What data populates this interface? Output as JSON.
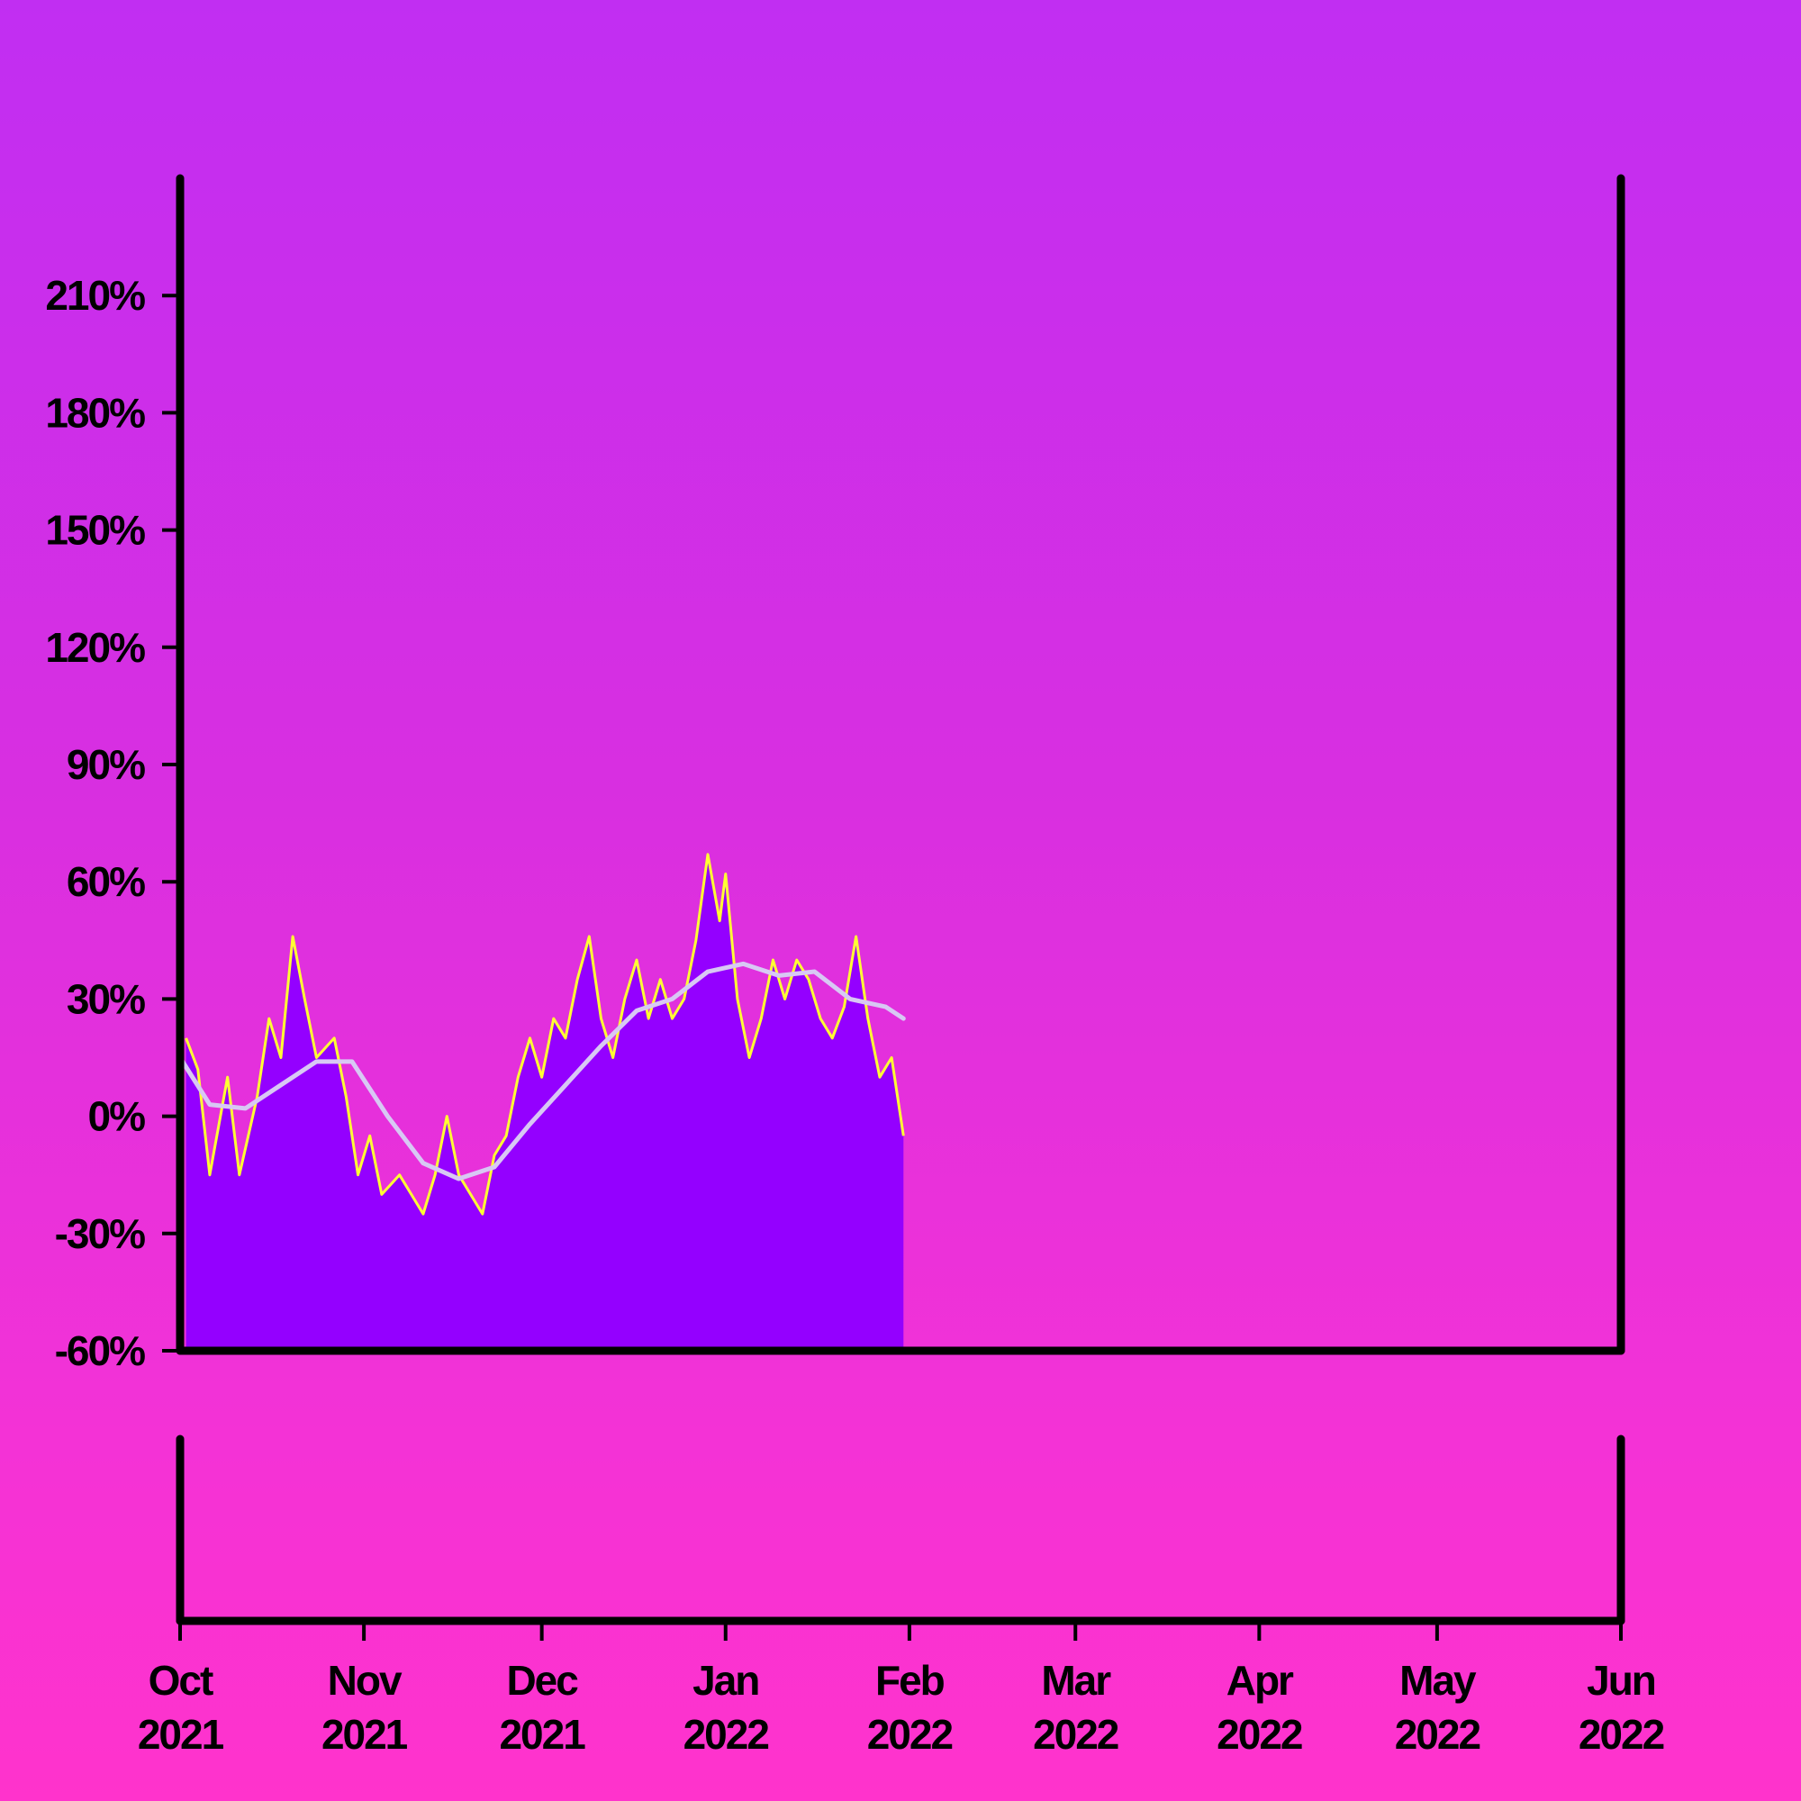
{
  "chart_data": {
    "type": "area",
    "x_range": [
      "2021-10-01",
      "2022-06-01"
    ],
    "ylim": [
      -60,
      240
    ],
    "y_ticks": [
      {
        "value": 210,
        "label": "210%"
      },
      {
        "value": 180,
        "label": "180%"
      },
      {
        "value": 150,
        "label": "150%"
      },
      {
        "value": 120,
        "label": "120%"
      },
      {
        "value": 90,
        "label": "90%"
      },
      {
        "value": 60,
        "label": "60%"
      },
      {
        "value": 30,
        "label": "30%"
      },
      {
        "value": 0,
        "label": "0%"
      },
      {
        "value": -30,
        "label": "-30%"
      },
      {
        "value": -60,
        "label": "-60%"
      }
    ],
    "x_ticks": [
      {
        "date": "2021-10-01",
        "month": "Oct",
        "year": "2021"
      },
      {
        "date": "2021-11-01",
        "month": "Nov",
        "year": "2021"
      },
      {
        "date": "2021-12-01",
        "month": "Dec",
        "year": "2021"
      },
      {
        "date": "2022-01-01",
        "month": "Jan",
        "year": "2022"
      },
      {
        "date": "2022-02-01",
        "month": "Feb",
        "year": "2022"
      },
      {
        "date": "2022-03-01",
        "month": "Mar",
        "year": "2022"
      },
      {
        "date": "2022-04-01",
        "month": "Apr",
        "year": "2022"
      },
      {
        "date": "2022-05-01",
        "month": "May",
        "year": "2022"
      },
      {
        "date": "2022-06-01",
        "month": "Jun",
        "year": "2022"
      }
    ],
    "series": [
      {
        "role": "value",
        "points": [
          [
            "2021-10-02",
            20
          ],
          [
            "2021-10-04",
            12
          ],
          [
            "2021-10-06",
            -15
          ],
          [
            "2021-10-09",
            10
          ],
          [
            "2021-10-11",
            -15
          ],
          [
            "2021-10-14",
            5
          ],
          [
            "2021-10-16",
            25
          ],
          [
            "2021-10-18",
            15
          ],
          [
            "2021-10-20",
            46
          ],
          [
            "2021-10-22",
            30
          ],
          [
            "2021-10-24",
            15
          ],
          [
            "2021-10-27",
            20
          ],
          [
            "2021-10-29",
            5
          ],
          [
            "2021-10-31",
            -15
          ],
          [
            "2021-11-02",
            -5
          ],
          [
            "2021-11-04",
            -20
          ],
          [
            "2021-11-07",
            -15
          ],
          [
            "2021-11-09",
            -20
          ],
          [
            "2021-11-11",
            -25
          ],
          [
            "2021-11-13",
            -15
          ],
          [
            "2021-11-15",
            0
          ],
          [
            "2021-11-17",
            -15
          ],
          [
            "2021-11-19",
            -20
          ],
          [
            "2021-11-21",
            -25
          ],
          [
            "2021-11-23",
            -10
          ],
          [
            "2021-11-25",
            -5
          ],
          [
            "2021-11-27",
            10
          ],
          [
            "2021-11-29",
            20
          ],
          [
            "2021-12-01",
            10
          ],
          [
            "2021-12-03",
            25
          ],
          [
            "2021-12-05",
            20
          ],
          [
            "2021-12-07",
            35
          ],
          [
            "2021-12-09",
            46
          ],
          [
            "2021-12-11",
            25
          ],
          [
            "2021-12-13",
            15
          ],
          [
            "2021-12-15",
            30
          ],
          [
            "2021-12-17",
            40
          ],
          [
            "2021-12-19",
            25
          ],
          [
            "2021-12-21",
            35
          ],
          [
            "2021-12-23",
            25
          ],
          [
            "2021-12-25",
            30
          ],
          [
            "2021-12-27",
            45
          ],
          [
            "2021-12-29",
            67
          ],
          [
            "2021-12-31",
            50
          ],
          [
            "2022-01-01",
            62
          ],
          [
            "2022-01-03",
            30
          ],
          [
            "2022-01-05",
            15
          ],
          [
            "2022-01-07",
            25
          ],
          [
            "2022-01-09",
            40
          ],
          [
            "2022-01-11",
            30
          ],
          [
            "2022-01-13",
            40
          ],
          [
            "2022-01-15",
            35
          ],
          [
            "2022-01-17",
            25
          ],
          [
            "2022-01-19",
            20
          ],
          [
            "2022-01-21",
            28
          ],
          [
            "2022-01-23",
            46
          ],
          [
            "2022-01-25",
            25
          ],
          [
            "2022-01-27",
            10
          ],
          [
            "2022-01-29",
            15
          ],
          [
            "2022-01-31",
            -5
          ]
        ]
      },
      {
        "role": "average",
        "points": [
          [
            "2021-10-01",
            15
          ],
          [
            "2021-10-06",
            3
          ],
          [
            "2021-10-12",
            2
          ],
          [
            "2021-10-18",
            8
          ],
          [
            "2021-10-24",
            14
          ],
          [
            "2021-10-30",
            14
          ],
          [
            "2021-11-05",
            0
          ],
          [
            "2021-11-11",
            -12
          ],
          [
            "2021-11-17",
            -16
          ],
          [
            "2021-11-23",
            -13
          ],
          [
            "2021-11-29",
            -2
          ],
          [
            "2021-12-05",
            8
          ],
          [
            "2021-12-11",
            18
          ],
          [
            "2021-12-17",
            27
          ],
          [
            "2021-12-23",
            30
          ],
          [
            "2021-12-29",
            37
          ],
          [
            "2022-01-04",
            39
          ],
          [
            "2022-01-10",
            36
          ],
          [
            "2022-01-16",
            37
          ],
          [
            "2022-01-22",
            30
          ],
          [
            "2022-01-28",
            28
          ],
          [
            "2022-01-31",
            25
          ]
        ]
      }
    ]
  }
}
